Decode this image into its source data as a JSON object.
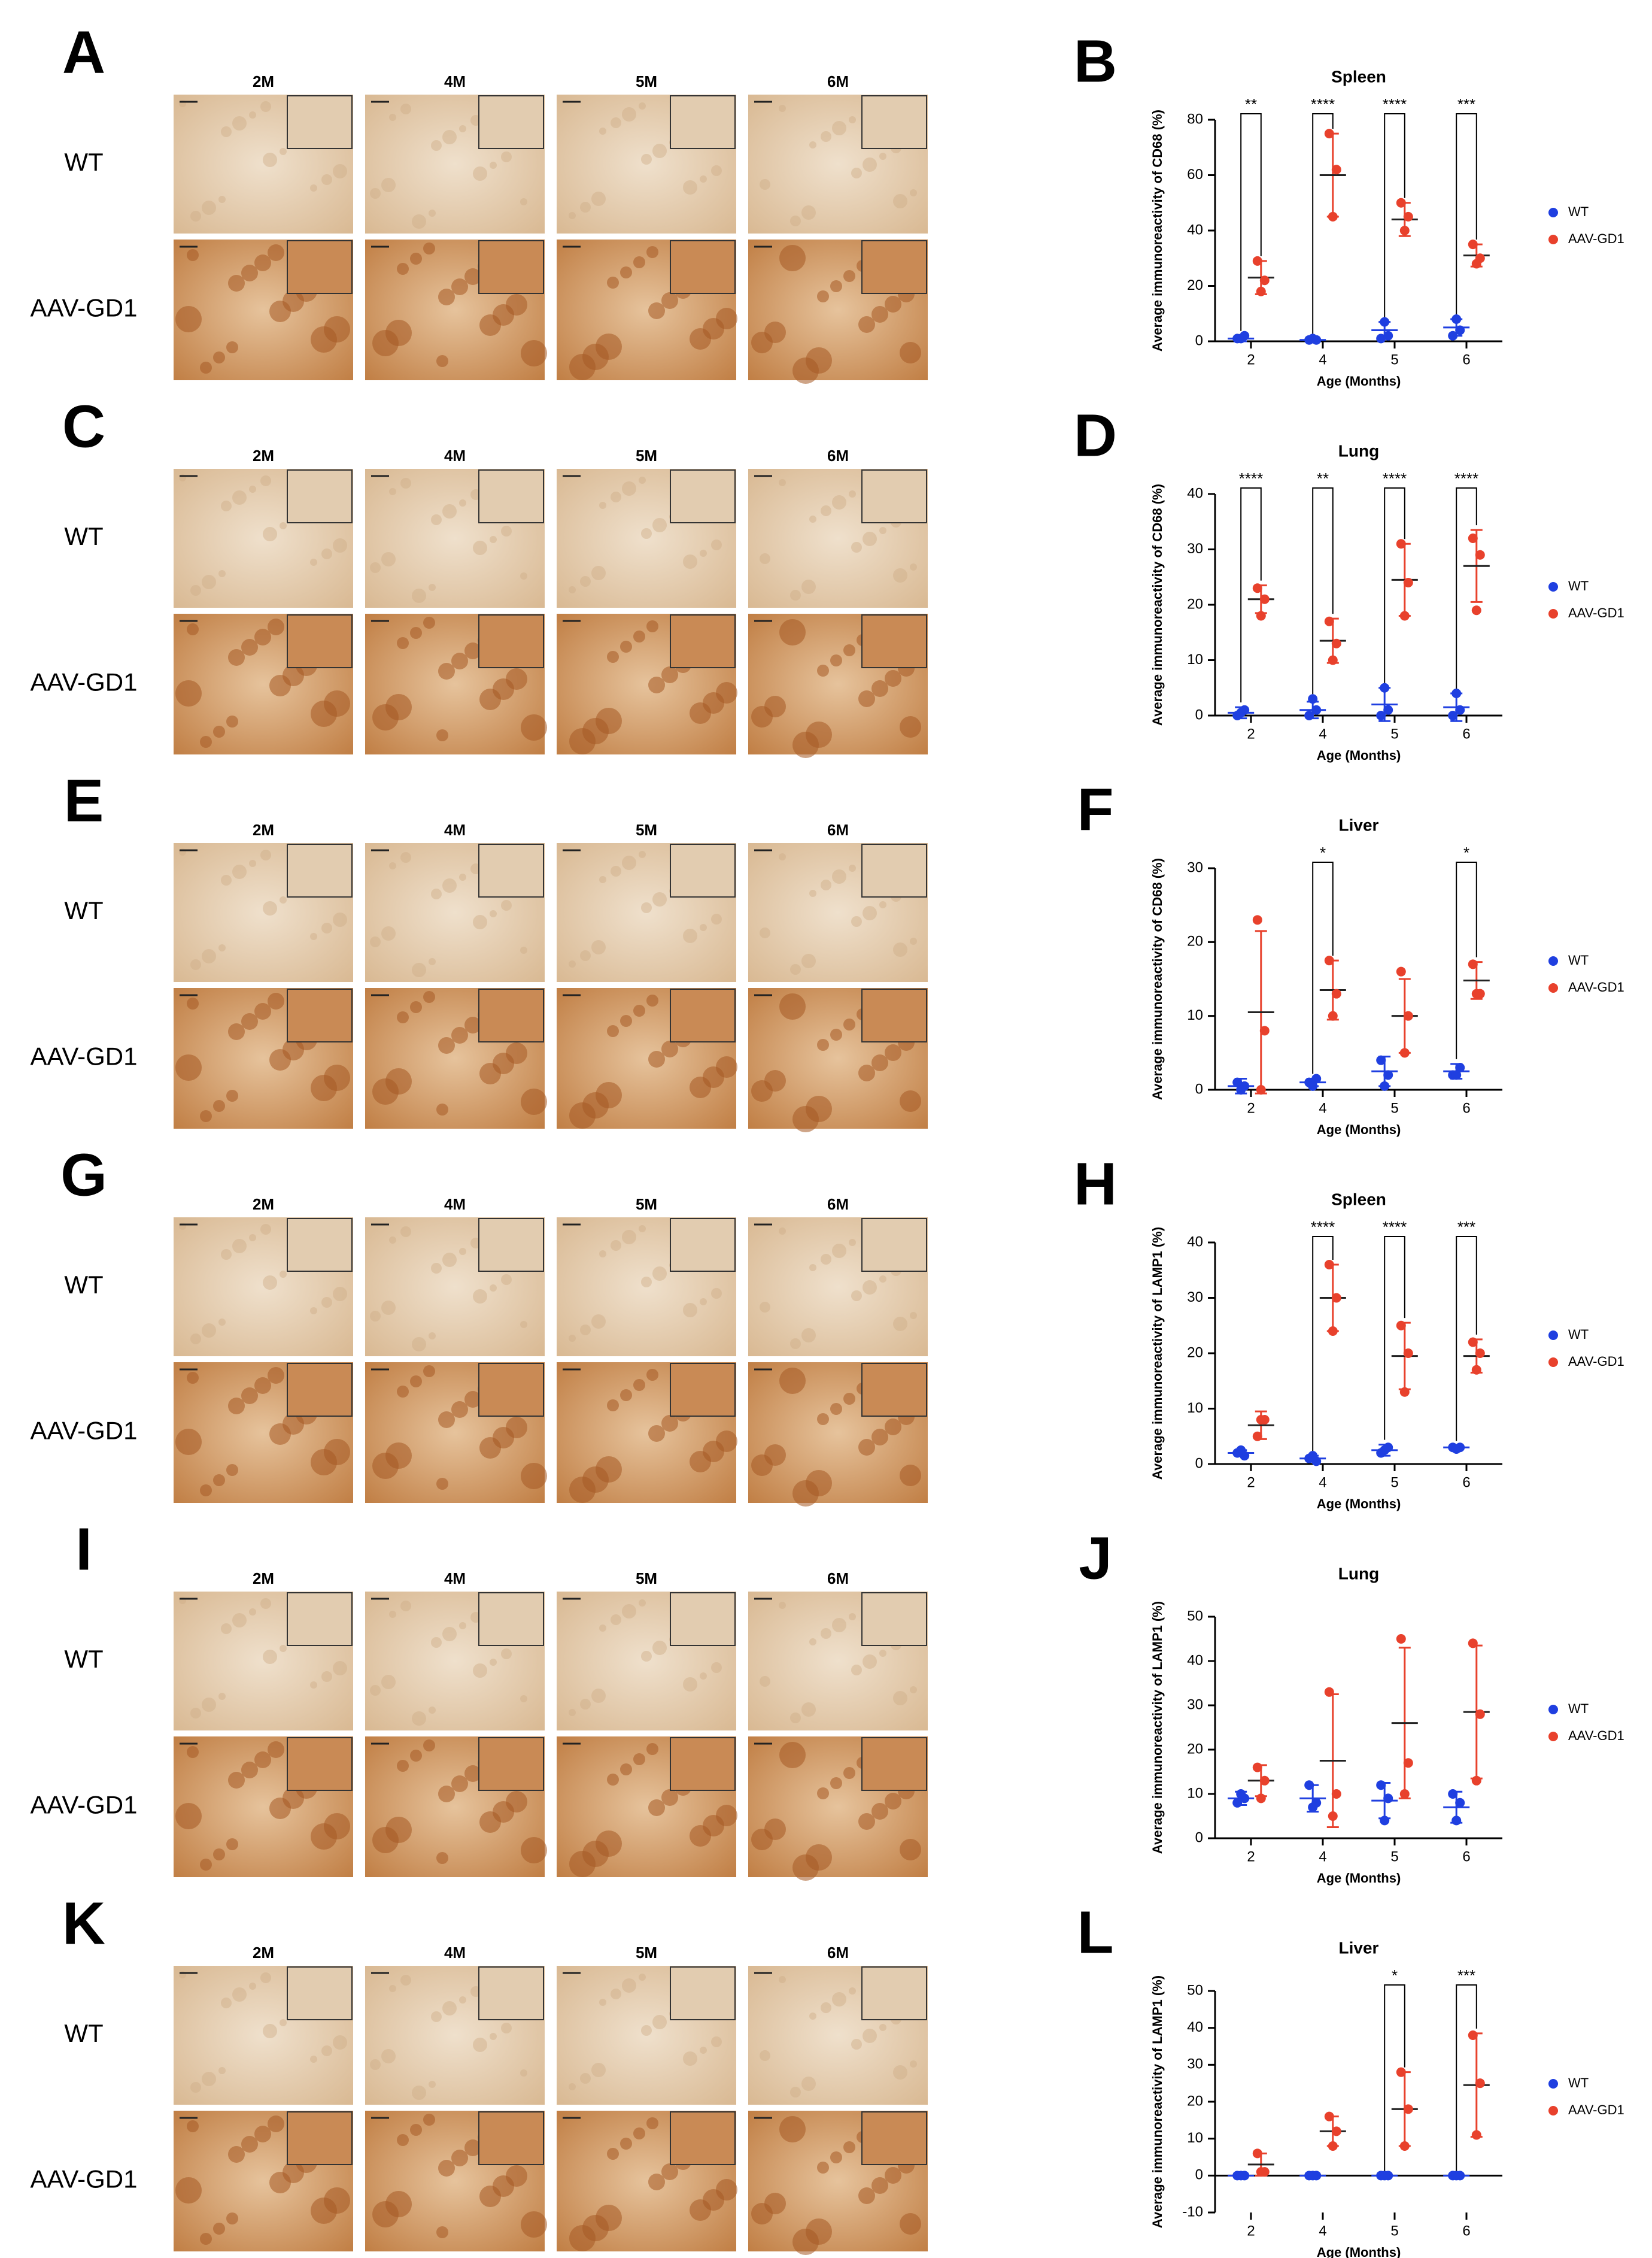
{
  "image_panels": [
    {
      "letter": "A",
      "columns": [
        "2M",
        "4M",
        "5M",
        "6M"
      ],
      "rows": [
        "WT",
        "AAV-GD1"
      ]
    },
    {
      "letter": "C",
      "columns": [
        "2M",
        "4M",
        "5M",
        "6M"
      ],
      "rows": [
        "WT",
        "AAV-GD1"
      ]
    },
    {
      "letter": "E",
      "columns": [
        "2M",
        "4M",
        "5M",
        "6M"
      ],
      "rows": [
        "WT",
        "AAV-GD1"
      ]
    },
    {
      "letter": "G",
      "columns": [
        "2M",
        "4M",
        "5M",
        "6M"
      ],
      "rows": [
        "WT",
        "AAV-GD1"
      ]
    },
    {
      "letter": "I",
      "columns": [
        "2M",
        "4M",
        "5M",
        "6M"
      ],
      "rows": [
        "WT",
        "AAV-GD1"
      ]
    },
    {
      "letter": "K",
      "columns": [
        "2M",
        "4M",
        "5M",
        "6M"
      ],
      "rows": [
        "WT",
        "AAV-GD1"
      ]
    }
  ],
  "chart_data": [
    {
      "type": "dot",
      "panel_label": "B",
      "title": "Spleen",
      "y_label": "Average immunoreactivity of CD68 (%)",
      "x_label": "Age (Months)",
      "categories": [
        "2",
        "4",
        "5",
        "6"
      ],
      "ylim": [
        0,
        80
      ],
      "yticks": [
        0,
        20,
        40,
        60,
        80
      ],
      "legend": "right",
      "significance": [
        "**",
        "****",
        "****",
        "***"
      ],
      "series": [
        {
          "name": "WT",
          "color": "#1f3fe0",
          "values": [
            1,
            0.5,
            4,
            5
          ],
          "errors": [
            1,
            0.5,
            3,
            3
          ],
          "points": [
            [
              1,
              2,
              1
            ],
            [
              0.5,
              0.5,
              1
            ],
            [
              1,
              2,
              7
            ],
            [
              2,
              4,
              8
            ]
          ]
        },
        {
          "name": "AAV-GD1",
          "color": "#e8412c",
          "values": [
            23,
            60,
            44,
            31
          ],
          "errors": [
            6,
            15,
            6,
            4
          ],
          "points": [
            [
              29,
              22,
              18
            ],
            [
              75,
              62,
              45
            ],
            [
              50,
              45,
              40
            ],
            [
              35,
              30,
              28
            ]
          ]
        }
      ]
    },
    {
      "type": "dot",
      "panel_label": "D",
      "title": "Lung",
      "y_label": "Average immunoreactivity of CD68 (%)",
      "x_label": "Age (Months)",
      "categories": [
        "2",
        "4",
        "5",
        "6"
      ],
      "ylim": [
        0,
        40
      ],
      "yticks": [
        0,
        10,
        20,
        30,
        40
      ],
      "legend": "right",
      "significance": [
        "****",
        "**",
        "****",
        "****"
      ],
      "series": [
        {
          "name": "WT",
          "color": "#1f3fe0",
          "values": [
            0.5,
            1,
            2,
            1.5
          ],
          "errors": [
            1,
            1.5,
            3,
            2.5
          ],
          "points": [
            [
              0,
              1,
              0.5
            ],
            [
              0,
              1,
              3
            ],
            [
              0,
              1,
              5
            ],
            [
              0,
              1,
              4
            ]
          ]
        },
        {
          "name": "AAV-GD1",
          "color": "#e8412c",
          "values": [
            21,
            13.5,
            24.5,
            27
          ],
          "errors": [
            2.5,
            4,
            6.5,
            6.5
          ],
          "points": [
            [
              23,
              21,
              18
            ],
            [
              17,
              13,
              10
            ],
            [
              31,
              24,
              18
            ],
            [
              32,
              29,
              19
            ]
          ]
        }
      ]
    },
    {
      "type": "dot",
      "panel_label": "F",
      "title": "Liver",
      "y_label": "Average immunoreactivity of CD68 (%)",
      "x_label": "Age (Months)",
      "categories": [
        "2",
        "4",
        "5",
        "6"
      ],
      "ylim": [
        0,
        30
      ],
      "yticks": [
        0,
        10,
        20,
        30
      ],
      "legend": "right",
      "significance": [
        null,
        "*",
        null,
        "*"
      ],
      "series": [
        {
          "name": "WT",
          "color": "#1f3fe0",
          "values": [
            0.5,
            1,
            2.5,
            2.5
          ],
          "errors": [
            1,
            0.5,
            2,
            1
          ],
          "points": [
            [
              1,
              0.5,
              0
            ],
            [
              1,
              1.5,
              0.5
            ],
            [
              4,
              2,
              0.5
            ],
            [
              2,
              3,
              2
            ]
          ]
        },
        {
          "name": "AAV-GD1",
          "color": "#e8412c",
          "values": [
            10.5,
            13.5,
            10,
            14.8
          ],
          "errors": [
            11,
            4,
            5,
            2.5
          ],
          "points": [
            [
              23,
              8,
              0
            ],
            [
              17.5,
              13,
              10
            ],
            [
              16,
              10,
              5
            ],
            [
              17,
              13,
              13
            ]
          ]
        }
      ]
    },
    {
      "type": "dot",
      "panel_label": "H",
      "title": "Spleen",
      "y_label": "Average immunoreactivity of LAMP1 (%)",
      "x_label": "Age (Months)",
      "categories": [
        "2",
        "4",
        "5",
        "6"
      ],
      "ylim": [
        0,
        40
      ],
      "yticks": [
        0,
        10,
        20,
        30,
        40
      ],
      "legend": "right",
      "significance": [
        null,
        "****",
        "****",
        "***"
      ],
      "series": [
        {
          "name": "WT",
          "color": "#1f3fe0",
          "values": [
            2,
            1,
            2.5,
            3
          ],
          "errors": [
            0.5,
            0.5,
            1,
            0.3
          ],
          "points": [
            [
              2,
              1.5,
              2.5
            ],
            [
              1,
              0.5,
              1.5
            ],
            [
              2,
              3,
              2.5
            ],
            [
              3,
              3,
              2.7
            ]
          ]
        },
        {
          "name": "AAV-GD1",
          "color": "#e8412c",
          "values": [
            7,
            30,
            19.5,
            19.5
          ],
          "errors": [
            2.5,
            6,
            6,
            3
          ],
          "points": [
            [
              5,
              8,
              8
            ],
            [
              36,
              30,
              24
            ],
            [
              25,
              20,
              13
            ],
            [
              22,
              20,
              17
            ]
          ]
        }
      ]
    },
    {
      "type": "dot",
      "panel_label": "J",
      "title": "Lung",
      "y_label": "Average immunoreactivity of LAMP1 (%)",
      "x_label": "Age (Months)",
      "categories": [
        "2",
        "4",
        "5",
        "6"
      ],
      "ylim": [
        0,
        50
      ],
      "yticks": [
        0,
        10,
        20,
        30,
        40,
        50
      ],
      "legend": "right",
      "series": [
        {
          "name": "WT",
          "color": "#1f3fe0",
          "values": [
            9,
            9,
            8.5,
            7
          ],
          "errors": [
            1.5,
            3,
            4,
            3.5
          ],
          "points": [
            [
              8,
              9,
              10
            ],
            [
              12,
              8,
              7
            ],
            [
              12,
              9,
              4
            ],
            [
              10,
              8,
              4
            ]
          ]
        },
        {
          "name": "AAV-GD1",
          "color": "#e8412c",
          "values": [
            13,
            17.5,
            26,
            28.5
          ],
          "errors": [
            3.5,
            15,
            17,
            15
          ],
          "points": [
            [
              16,
              13,
              9
            ],
            [
              33,
              10,
              5
            ],
            [
              45,
              17,
              10
            ],
            [
              44,
              28,
              13
            ]
          ]
        }
      ]
    },
    {
      "type": "dot",
      "panel_label": "L",
      "title": "Liver",
      "y_label": "Average immunoreactivity of LAMP1 (%)",
      "x_label": "Age (Months)",
      "categories": [
        "2",
        "4",
        "5",
        "6"
      ],
      "ylim": [
        -10,
        50
      ],
      "yticks": [
        -10,
        0,
        10,
        20,
        30,
        40,
        50
      ],
      "legend": "right",
      "significance": [
        null,
        null,
        "*",
        "***"
      ],
      "series": [
        {
          "name": "WT",
          "color": "#1f3fe0",
          "values": [
            0,
            0,
            0,
            0
          ],
          "errors": [
            0,
            0,
            0,
            0
          ],
          "points": [
            [
              0,
              0,
              0
            ],
            [
              0,
              0,
              0
            ],
            [
              0,
              0,
              0
            ],
            [
              0,
              0,
              0
            ]
          ]
        },
        {
          "name": "AAV-GD1",
          "color": "#e8412c",
          "values": [
            3,
            12,
            18,
            24.5
          ],
          "errors": [
            3,
            4,
            10,
            14
          ],
          "points": [
            [
              6,
              1,
              1
            ],
            [
              16,
              12,
              8
            ],
            [
              28,
              18,
              8
            ],
            [
              38,
              25,
              11
            ]
          ]
        }
      ]
    }
  ]
}
